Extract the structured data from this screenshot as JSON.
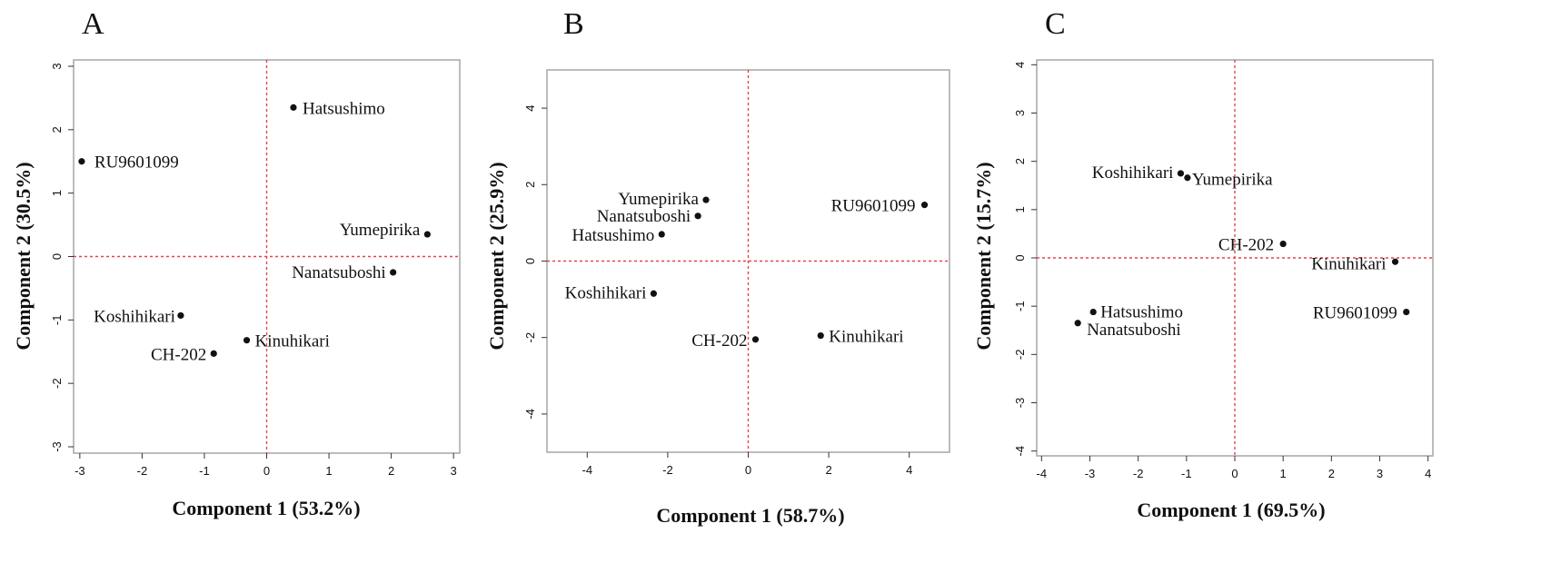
{
  "chart_data": [
    {
      "type": "scatter",
      "panel": "A",
      "xlabel": "Component 1 (53.2%)",
      "ylabel": "Component 2 (30.5%)",
      "xlim": [
        -3.1,
        3.1
      ],
      "ylim": [
        -3.1,
        3.1
      ],
      "xticks": [
        "-3",
        "-2",
        "-1",
        "0",
        "1",
        "2",
        "3"
      ],
      "yticks": [
        "-3",
        "-2",
        "-1",
        "0",
        "1",
        "2",
        "3"
      ],
      "reference_lines": {
        "x": 0,
        "y": 0
      },
      "points": [
        {
          "label": "Hatsushimo",
          "x": 0.43,
          "y": 2.35
        },
        {
          "label": "RU9601099",
          "x": -2.97,
          "y": 1.5
        },
        {
          "label": "Yumepirika",
          "x": 2.58,
          "y": 0.35
        },
        {
          "label": "Nanatsuboshi",
          "x": 2.03,
          "y": -0.25
        },
        {
          "label": "Koshihikari",
          "x": -1.38,
          "y": -0.93
        },
        {
          "label": "Kinuhikari",
          "x": -0.32,
          "y": -1.32
        },
        {
          "label": "CH-202",
          "x": -0.85,
          "y": -1.53
        }
      ]
    },
    {
      "type": "scatter",
      "panel": "B",
      "xlabel": "Component 1 (58.7%)",
      "ylabel": "Component 2 (25.9%)",
      "xlim": [
        -5,
        5
      ],
      "ylim": [
        -5,
        5
      ],
      "xticks": [
        "-4",
        "-2",
        "0",
        "2",
        "4"
      ],
      "yticks": [
        "-4",
        "-2",
        "0",
        "2",
        "4"
      ],
      "reference_lines": {
        "x": 0,
        "y": 0
      },
      "points": [
        {
          "label": "Yumepirika",
          "x": -1.05,
          "y": 1.6
        },
        {
          "label": "Nanatsuboshi",
          "x": -1.25,
          "y": 1.18
        },
        {
          "label": "Hatsushimo",
          "x": -2.15,
          "y": 0.7
        },
        {
          "label": "RU9601099",
          "x": 4.38,
          "y": 1.47
        },
        {
          "label": "Koshihikari",
          "x": -2.35,
          "y": -0.85
        },
        {
          "label": "CH-202",
          "x": 0.18,
          "y": -2.05
        },
        {
          "label": "Kinuhikari",
          "x": 1.8,
          "y": -1.95
        }
      ]
    },
    {
      "type": "scatter",
      "panel": "C",
      "xlabel": "Component 1 (69.5%)",
      "ylabel": "Component 2 (15.7%)",
      "xlim": [
        -4.1,
        4.1
      ],
      "ylim": [
        -4.1,
        4.1
      ],
      "xticks": [
        "-4",
        "-3",
        "-2",
        "-1",
        "0",
        "1",
        "2",
        "3",
        "4"
      ],
      "yticks": [
        "-4",
        "-3",
        "-2",
        "-1",
        "0",
        "1",
        "2",
        "3",
        "4"
      ],
      "reference_lines": {
        "x": 0,
        "y": 0
      },
      "points": [
        {
          "label": "Koshihikari",
          "x": -1.12,
          "y": 1.75
        },
        {
          "label": "Yumepirika",
          "x": -0.98,
          "y": 1.66
        },
        {
          "label": "CH-202",
          "x": 1.0,
          "y": 0.29
        },
        {
          "label": "Kinuhikari",
          "x": 3.32,
          "y": -0.08
        },
        {
          "label": "RU9601099",
          "x": 3.55,
          "y": -1.12
        },
        {
          "label": "Hatsushimo",
          "x": -2.93,
          "y": -1.12
        },
        {
          "label": "Nanatsuboshi",
          "x": -3.25,
          "y": -1.35
        }
      ]
    }
  ],
  "colors": {
    "point": "#111111",
    "reference_line": "#e8414e",
    "frame": "#a6a6a6",
    "text": "#111111"
  }
}
